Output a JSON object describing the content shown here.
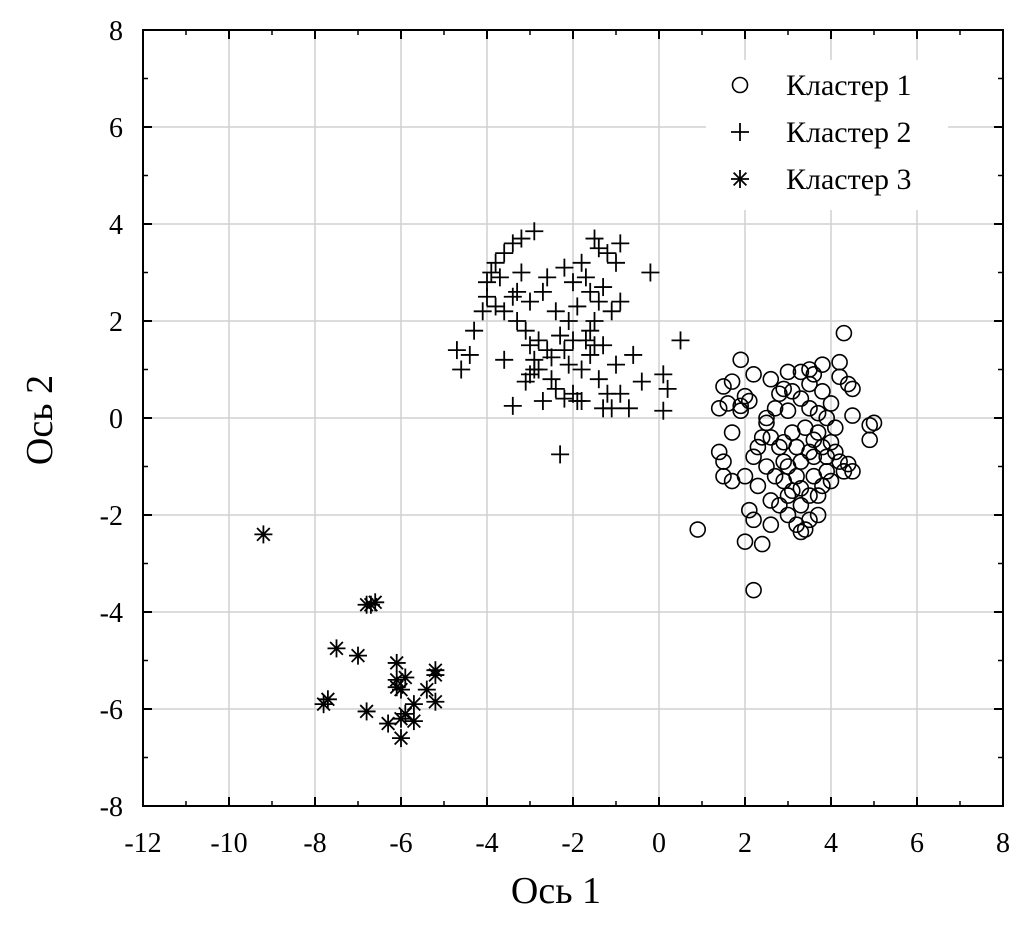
{
  "chart_data": {
    "type": "scatter",
    "xlabel": "Ось 1",
    "ylabel": "Ось 2",
    "xlim": [
      -12,
      8
    ],
    "ylim": [
      -8,
      8
    ],
    "xticks": [
      "-12",
      "-10",
      "-8",
      "-6",
      "-4",
      "-2",
      "0",
      "2",
      "4",
      "6",
      "8"
    ],
    "yticks": [
      "8",
      "6",
      "4",
      "2",
      "0",
      "-2",
      "-4",
      "-6",
      "-8"
    ],
    "grid": true,
    "legend_position": "top-right",
    "series": [
      {
        "name": "Кластер 1",
        "marker": "circle",
        "points": [
          [
            0.9,
            -2.3
          ],
          [
            2.2,
            -3.55
          ],
          [
            2.0,
            -2.55
          ],
          [
            2.4,
            -2.6
          ],
          [
            2.2,
            -2.1
          ],
          [
            2.1,
            -1.9
          ],
          [
            2.6,
            -1.7
          ],
          [
            2.8,
            -1.8
          ],
          [
            3.0,
            -2.0
          ],
          [
            3.2,
            -2.2
          ],
          [
            3.3,
            -2.35
          ],
          [
            3.4,
            -2.3
          ],
          [
            3.1,
            -1.5
          ],
          [
            3.5,
            -1.6
          ],
          [
            2.9,
            -1.3
          ],
          [
            3.6,
            -1.2
          ],
          [
            3.8,
            -1.4
          ],
          [
            4.0,
            -1.3
          ],
          [
            4.3,
            -1.1
          ],
          [
            4.5,
            -1.1
          ],
          [
            4.2,
            -0.9
          ],
          [
            4.4,
            -0.95
          ],
          [
            3.9,
            -0.8
          ],
          [
            3.5,
            -0.7
          ],
          [
            3.2,
            -0.6
          ],
          [
            2.9,
            -0.5
          ],
          [
            2.6,
            -0.4
          ],
          [
            2.3,
            -0.6
          ],
          [
            2.0,
            -1.2
          ],
          [
            1.7,
            -1.3
          ],
          [
            1.5,
            -1.2
          ],
          [
            1.4,
            -0.7
          ],
          [
            1.5,
            -0.9
          ],
          [
            1.7,
            -0.3
          ],
          [
            1.4,
            0.2
          ],
          [
            1.6,
            0.3
          ],
          [
            1.9,
            0.25
          ],
          [
            2.0,
            0.45
          ],
          [
            2.1,
            0.35
          ],
          [
            1.9,
            0.15
          ],
          [
            1.5,
            0.65
          ],
          [
            1.7,
            0.75
          ],
          [
            1.9,
            1.2
          ],
          [
            2.2,
            0.9
          ],
          [
            2.6,
            0.8
          ],
          [
            2.9,
            0.6
          ],
          [
            3.1,
            0.55
          ],
          [
            3.3,
            0.4
          ],
          [
            3.5,
            0.2
          ],
          [
            3.7,
            0.1
          ],
          [
            3.9,
            0.0
          ],
          [
            4.1,
            -0.2
          ],
          [
            4.5,
            0.05
          ],
          [
            4.9,
            -0.45
          ],
          [
            5.0,
            -0.1
          ],
          [
            4.9,
            -0.15
          ],
          [
            4.5,
            0.6
          ],
          [
            4.4,
            0.7
          ],
          [
            4.3,
            1.75
          ],
          [
            4.2,
            0.85
          ],
          [
            4.2,
            1.15
          ],
          [
            3.8,
            1.1
          ],
          [
            3.6,
            0.9
          ],
          [
            3.5,
            0.7
          ],
          [
            3.3,
            0.95
          ],
          [
            3.0,
            0.95
          ],
          [
            2.8,
            0.5
          ],
          [
            2.7,
            0.2
          ],
          [
            2.5,
            -0.1
          ],
          [
            2.4,
            -0.4
          ],
          [
            2.2,
            -0.8
          ],
          [
            2.5,
            -1.0
          ],
          [
            2.7,
            -1.2
          ],
          [
            3.0,
            -1.0
          ],
          [
            3.3,
            -0.9
          ],
          [
            3.6,
            -0.8
          ],
          [
            3.8,
            -0.6
          ],
          [
            4.0,
            -0.5
          ],
          [
            3.7,
            -0.3
          ],
          [
            3.4,
            -0.2
          ],
          [
            3.1,
            -0.3
          ],
          [
            2.8,
            -0.6
          ],
          [
            3.0,
            -1.6
          ],
          [
            3.3,
            -1.8
          ],
          [
            3.5,
            -2.1
          ],
          [
            2.6,
            -2.2
          ],
          [
            2.3,
            -1.4
          ],
          [
            3.7,
            -1.6
          ],
          [
            3.9,
            -1.1
          ],
          [
            4.1,
            -0.7
          ],
          [
            3.2,
            -1.2
          ],
          [
            2.9,
            -0.9
          ],
          [
            3.6,
            -0.45
          ],
          [
            3.0,
            0.15
          ],
          [
            3.8,
            0.55
          ],
          [
            3.5,
            1.0
          ],
          [
            4.0,
            0.3
          ],
          [
            2.5,
            0.0
          ],
          [
            3.3,
            -1.45
          ],
          [
            3.7,
            -2.0
          ]
        ]
      },
      {
        "name": "Кластер 2",
        "marker": "plus",
        "points": [
          [
            -4.7,
            1.4
          ],
          [
            -4.6,
            1.0
          ],
          [
            -4.4,
            1.3
          ],
          [
            -4.3,
            1.8
          ],
          [
            -4.1,
            2.2
          ],
          [
            -4.0,
            2.8
          ],
          [
            -3.9,
            3.0
          ],
          [
            -3.8,
            3.2
          ],
          [
            -3.6,
            3.4
          ],
          [
            -3.4,
            3.6
          ],
          [
            -3.2,
            3.7
          ],
          [
            -2.9,
            3.85
          ],
          [
            -3.6,
            2.2
          ],
          [
            -3.4,
            2.5
          ],
          [
            -3.3,
            2.0
          ],
          [
            -3.1,
            1.8
          ],
          [
            -3.0,
            1.5
          ],
          [
            -2.9,
            1.2
          ],
          [
            -2.8,
            1.0
          ],
          [
            -2.7,
            2.6
          ],
          [
            -2.6,
            2.9
          ],
          [
            -2.4,
            2.2
          ],
          [
            -2.3,
            1.7
          ],
          [
            -2.2,
            1.4
          ],
          [
            -2.1,
            1.1
          ],
          [
            -2.0,
            0.5
          ],
          [
            -1.9,
            0.35
          ],
          [
            -2.3,
            -0.75
          ],
          [
            -2.4,
            0.6
          ],
          [
            -2.2,
            3.1
          ],
          [
            -2.0,
            2.8
          ],
          [
            -1.8,
            3.2
          ],
          [
            -1.6,
            2.6
          ],
          [
            -1.5,
            3.7
          ],
          [
            -1.4,
            3.5
          ],
          [
            -1.2,
            3.4
          ],
          [
            -1.0,
            3.2
          ],
          [
            -0.9,
            3.6
          ],
          [
            -1.3,
            2.7
          ],
          [
            -1.1,
            2.2
          ],
          [
            -0.9,
            2.4
          ],
          [
            -1.5,
            2.0
          ],
          [
            -1.7,
            1.6
          ],
          [
            -1.6,
            1.3
          ],
          [
            -1.4,
            0.8
          ],
          [
            -1.2,
            0.5
          ],
          [
            -1.1,
            0.2
          ],
          [
            -0.9,
            0.5
          ],
          [
            -0.6,
            1.3
          ],
          [
            -0.4,
            0.75
          ],
          [
            -0.2,
            3.0
          ],
          [
            0.1,
            0.9
          ],
          [
            0.2,
            0.6
          ],
          [
            0.1,
            0.15
          ],
          [
            0.5,
            1.6
          ],
          [
            -3.4,
            0.25
          ],
          [
            -3.6,
            1.2
          ],
          [
            -3.1,
            0.75
          ],
          [
            -2.7,
            0.35
          ],
          [
            -2.5,
            1.25
          ],
          [
            -1.8,
            0.35
          ],
          [
            -1.6,
            1.8
          ],
          [
            -1.3,
            1.5
          ],
          [
            -3.8,
            2.3
          ],
          [
            -3.0,
            2.4
          ],
          [
            -2.1,
            2.0
          ],
          [
            -1.9,
            2.3
          ],
          [
            -1.7,
            2.9
          ],
          [
            -1.3,
            0.2
          ],
          [
            -0.7,
            0.2
          ],
          [
            -2.5,
            0.8
          ],
          [
            -3.2,
            3.0
          ],
          [
            -2.8,
            1.6
          ],
          [
            -2.6,
            1.4
          ],
          [
            -3.0,
            0.9
          ],
          [
            -2.0,
            1.6
          ],
          [
            -1.8,
            1.0
          ],
          [
            -1.5,
            1.5
          ],
          [
            -1.0,
            1.1
          ],
          [
            -2.2,
            0.4
          ],
          [
            -4.0,
            2.5
          ],
          [
            -3.7,
            2.9
          ],
          [
            -3.3,
            2.6
          ],
          [
            -2.9,
            1.0
          ],
          [
            -1.4,
            2.4
          ]
        ]
      },
      {
        "name": "Кластер 3",
        "marker": "asterisk",
        "points": [
          [
            -9.2,
            -2.4
          ],
          [
            -6.8,
            -3.85
          ],
          [
            -6.7,
            -3.85
          ],
          [
            -6.6,
            -3.8
          ],
          [
            -7.5,
            -4.75
          ],
          [
            -7.0,
            -4.9
          ],
          [
            -7.8,
            -5.9
          ],
          [
            -7.7,
            -5.8
          ],
          [
            -6.8,
            -6.05
          ],
          [
            -6.1,
            -5.05
          ],
          [
            -6.1,
            -5.4
          ],
          [
            -6.0,
            -5.6
          ],
          [
            -5.9,
            -5.35
          ],
          [
            -5.2,
            -5.2
          ],
          [
            -5.2,
            -5.3
          ],
          [
            -5.4,
            -5.6
          ],
          [
            -5.2,
            -5.85
          ],
          [
            -5.7,
            -5.9
          ],
          [
            -5.9,
            -6.1
          ],
          [
            -6.0,
            -6.2
          ],
          [
            -6.3,
            -6.3
          ],
          [
            -6.0,
            -6.6
          ],
          [
            -5.7,
            -6.25
          ],
          [
            -6.1,
            -5.55
          ]
        ]
      }
    ]
  }
}
